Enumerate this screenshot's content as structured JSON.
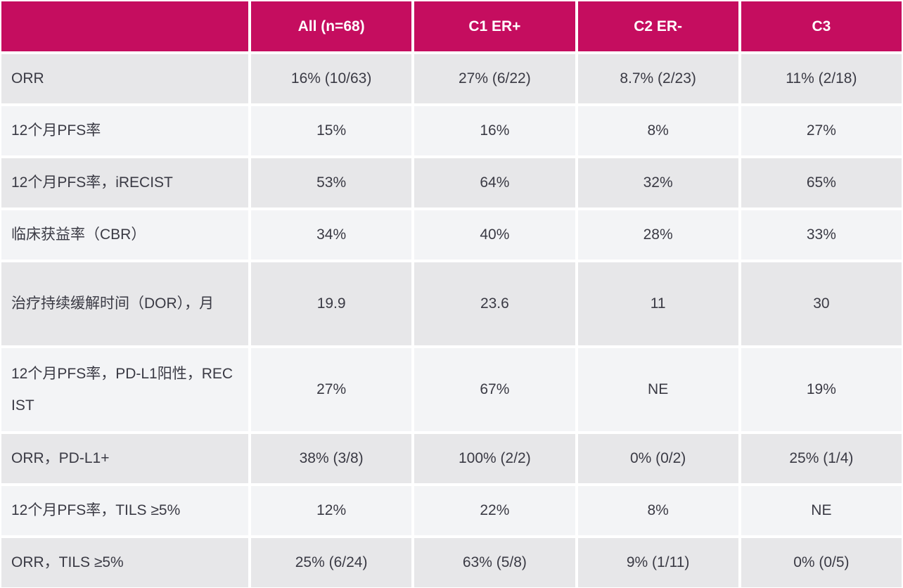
{
  "colors": {
    "header_bg": "#c50d5f",
    "header_text": "#ffffff",
    "row_odd_bg": "#e7e7e9",
    "row_even_bg": "#f3f4f6",
    "text": "#3a3a44",
    "grid_gap": "#ffffff"
  },
  "chart_data": {
    "type": "table",
    "title": "",
    "headers": [
      "",
      "All (n=68)",
      "C1 ER+",
      "C2 ER-",
      "C3"
    ],
    "rows": [
      {
        "label": "ORR",
        "values": [
          "16% (10/63)",
          "27% (6/22)",
          "8.7% (2/23)",
          "11% (2/18)"
        ]
      },
      {
        "label": "12个月PFS率",
        "values": [
          "15%",
          "16%",
          "8%",
          "27%"
        ]
      },
      {
        "label": "12个月PFS率，iRECIST",
        "values": [
          "53%",
          "64%",
          "32%",
          "65%"
        ]
      },
      {
        "label": "临床获益率（CBR）",
        "values": [
          "34%",
          "40%",
          "28%",
          "33%"
        ]
      },
      {
        "label": "治疗持续缓解时间（DOR），月",
        "values": [
          "19.9",
          "23.6",
          "11",
          "30"
        ]
      },
      {
        "label": "12个月PFS率，PD-L1阳性，RECIST",
        "values": [
          "27%",
          "67%",
          "NE",
          "19%"
        ]
      },
      {
        "label": "ORR，PD-L1+",
        "values": [
          "38% (3/8)",
          "100% (2/2)",
          "0% (0/2)",
          "25% (1/4)"
        ]
      },
      {
        "label": "12个月PFS率，TILS ≥5%",
        "values": [
          "12%",
          "22%",
          "8%",
          "NE"
        ]
      },
      {
        "label": "ORR，TILS ≥5%",
        "values": [
          "25% (6/24)",
          "63% (5/8)",
          "9% (1/11)",
          "0% (0/5)"
        ]
      }
    ]
  }
}
